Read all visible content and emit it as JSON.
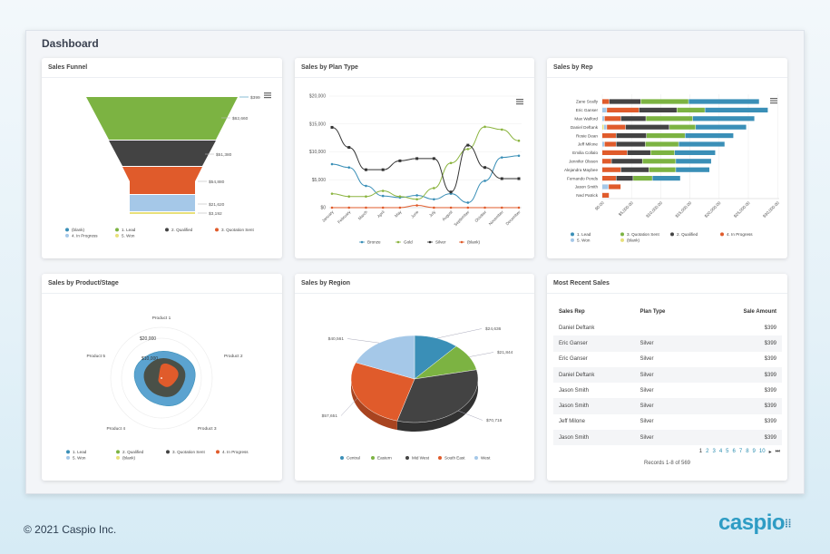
{
  "page": {
    "title": "Dashboard",
    "footer": "© 2021 Caspio Inc.",
    "logo": "caspio"
  },
  "colors": {
    "lead": "#3a8fb7",
    "qualified": "#7cb342",
    "quotation": "#434343",
    "progress": "#e05b2b",
    "won": "#a5c8e8",
    "blank": "#e8e07a"
  },
  "cards": {
    "funnel": "Sales Funnel",
    "plan": "Sales by Plan Type",
    "rep": "Sales by Rep",
    "product": "Sales by Product/Stage",
    "region": "Sales by Region",
    "recent": "Most Recent Sales"
  },
  "chart_data": [
    {
      "type": "funnel",
      "title": "Sales Funnel",
      "stages": [
        "(blank)",
        "1. Lead",
        "2. Qualified",
        "3. Quotation Sent",
        "4. In Progress",
        "5. Won"
      ],
      "labels": [
        "$399",
        "$62,660",
        "$51,380",
        "$54,880",
        "$21,620",
        "$3,192"
      ],
      "legend": [
        "(blank)",
        "1. Lead",
        "2. Qualified",
        "3. Quotation Sent",
        "4. In Progress",
        "5. Won"
      ]
    },
    {
      "type": "line",
      "title": "Sales by Plan Type",
      "categories": [
        "January",
        "February",
        "March",
        "April",
        "May",
        "June",
        "July",
        "August",
        "September",
        "October",
        "November",
        "December"
      ],
      "yticks": [
        "$0",
        "$5,000",
        "$10,000",
        "$15,000",
        "$20,000"
      ],
      "ylim": [
        0,
        20000
      ],
      "series": [
        {
          "name": "Bronze",
          "color": "#3a8fb7",
          "values": [
            7800,
            7200,
            3900,
            2100,
            1800,
            2200,
            1500,
            2500,
            900,
            4800,
            9000,
            9300
          ]
        },
        {
          "name": "Gold",
          "color": "#8bb43f",
          "values": [
            2500,
            2000,
            2000,
            3000,
            2000,
            1500,
            3500,
            8000,
            10500,
            14500,
            14000,
            12000
          ]
        },
        {
          "name": "Silver",
          "color": "#333333",
          "values": [
            14400,
            10800,
            6800,
            6800,
            8400,
            8800,
            8800,
            2800,
            11200,
            7200,
            5200,
            5200
          ]
        },
        {
          "name": "(blank)",
          "color": "#e05b2b",
          "values": [
            0,
            0,
            0,
            0,
            0,
            400,
            0,
            0,
            0,
            0,
            0,
            0
          ]
        }
      ]
    },
    {
      "type": "bar",
      "orientation": "horizontal",
      "stacked": true,
      "title": "Sales by Rep",
      "xlim": [
        0,
        30000
      ],
      "xticks": [
        "$0.00",
        "$5,000.00",
        "$10,000.00",
        "$15,000.00",
        "$20,000.00",
        "$25,000.00",
        "$30,000.00"
      ],
      "categories": [
        "Zane Scally",
        "Eric Ganser",
        "Max Walford",
        "Daniel Deftank",
        "Rosie Dean",
        "Jeff Milone",
        "Emilia Collalo",
        "Jennifer Olsson",
        "Alejandra Maybee",
        "Fernando Ponds",
        "Jason Smith",
        "Ned Patrick"
      ],
      "series": [
        {
          "name": "(blank)",
          "color": "#e8e07a",
          "values": [
            0,
            0,
            0,
            300,
            0,
            0,
            0,
            0,
            0,
            0,
            0,
            0
          ]
        },
        {
          "name": "5. Won",
          "color": "#a5c8e8",
          "values": [
            0,
            800,
            400,
            500,
            0,
            400,
            0,
            0,
            0,
            0,
            1100,
            0
          ]
        },
        {
          "name": "4. In Progress",
          "color": "#e05b2b",
          "values": [
            1200,
            5500,
            2800,
            3200,
            2400,
            2000,
            4300,
            1600,
            3200,
            2400,
            2100,
            1200
          ]
        },
        {
          "name": "2. Qualified",
          "color": "#434343",
          "values": [
            5400,
            6500,
            4300,
            7500,
            5200,
            5000,
            4000,
            5300,
            4800,
            2900,
            0,
            0
          ]
        },
        {
          "name": "3. Quotation Sent",
          "color": "#7cb342",
          "values": [
            8200,
            4800,
            8000,
            4500,
            6600,
            5700,
            4100,
            5700,
            4600,
            3300,
            0,
            0
          ]
        },
        {
          "name": "1. Lead",
          "color": "#3a8fb7",
          "values": [
            12100,
            10800,
            10600,
            8700,
            8300,
            7900,
            7000,
            6100,
            5800,
            4800,
            0,
            0
          ]
        }
      ],
      "legend": [
        "1. Lead",
        "3. Quotation Sent",
        "2. Qualified",
        "4. In Progress",
        "5. Won",
        "(blank)"
      ]
    },
    {
      "type": "radar",
      "title": "Sales by Product/Stage",
      "categories": [
        "Product 1",
        "Product 2",
        "Product 3",
        "Product 4",
        "Product 5"
      ],
      "rings": [
        "$10,000",
        "$20,000"
      ],
      "series": [
        {
          "name": "1. Lead",
          "color": "#5ba3d0",
          "values": [
            16000,
            21000,
            19000,
            15000,
            17000
          ]
        },
        {
          "name": "2. Qualified",
          "color": "#7cb342",
          "values": [
            0,
            0,
            0,
            11000,
            0
          ]
        },
        {
          "name": "3. Quotation Sent",
          "color": "#4a5048",
          "values": [
            12000,
            15000,
            13000,
            10000,
            11000
          ]
        },
        {
          "name": "4. In Progress",
          "color": "#e05b2b",
          "values": [
            9000,
            11000,
            7000,
            3000,
            1500
          ]
        },
        {
          "name": "5. Won",
          "color": "#ffffff",
          "values": [
            500,
            500,
            500,
            500,
            500
          ]
        }
      ],
      "legend": [
        "1. Lead",
        "2. Qualified",
        "3. Quotation Sent",
        "4. In Progress",
        "5. Won",
        "(blank)"
      ]
    },
    {
      "type": "pie",
      "title": "Sales by Region",
      "categories": [
        "Central",
        "Eastern",
        "Mid West",
        "South East",
        "West"
      ],
      "values": [
        24636,
        21844,
        70718,
        57651,
        40561
      ],
      "labels": [
        "$24,636",
        "$21,844",
        "$70,718",
        "$57,651",
        "$40,561"
      ],
      "colors": [
        "#3a8fb7",
        "#7cb342",
        "#434343",
        "#e05b2b",
        "#a5c8e8"
      ]
    }
  ],
  "recent": {
    "headers": [
      "Sales Rep",
      "Plan Type",
      "Sale Amount"
    ],
    "rows": [
      [
        "Daniel Deftank",
        "",
        "$399"
      ],
      [
        "Eric Ganser",
        "Silver",
        "$399"
      ],
      [
        "Eric Ganser",
        "Silver",
        "$399"
      ],
      [
        "Daniel Deftank",
        "Silver",
        "$399"
      ],
      [
        "Jason Smith",
        "Silver",
        "$399"
      ],
      [
        "Jason Smith",
        "Silver",
        "$399"
      ],
      [
        "Jeff Milone",
        "Silver",
        "$399"
      ],
      [
        "Jason Smith",
        "Silver",
        "$399"
      ]
    ],
    "pages": [
      "1",
      "2",
      "3",
      "4",
      "5",
      "6",
      "7",
      "8",
      "9",
      "10"
    ],
    "next": "▸",
    "last": "⏭",
    "records": "Records 1-8 of 569"
  }
}
